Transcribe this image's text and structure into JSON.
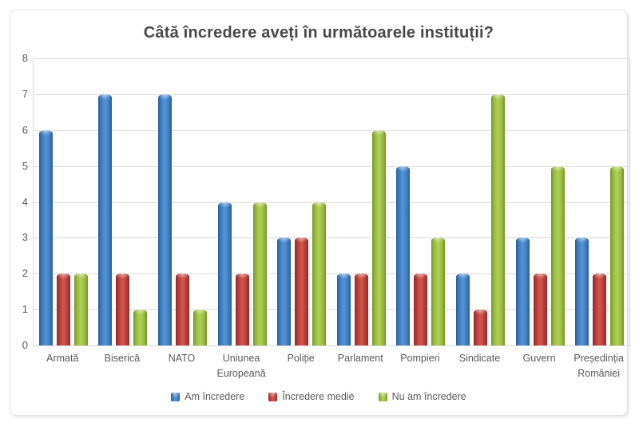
{
  "title": "Câtă încredere aveți în următoarele instituții?",
  "chart_data": {
    "type": "bar",
    "title": "Câtă încredere aveți în următoarele instituții?",
    "categories": [
      "Armată",
      "Biserică",
      "NATO",
      "Uniunea Europeană",
      "Poliție",
      "Parlament",
      "Pompieri",
      "Sindicate",
      "Guvern",
      "Președinția României"
    ],
    "series": [
      {
        "name": "Am încredere",
        "color": "#3a78bc",
        "values": [
          6,
          7,
          7,
          4,
          3,
          2,
          5,
          2,
          3,
          3
        ]
      },
      {
        "name": "Încredere medie",
        "color": "#b23833",
        "values": [
          2,
          2,
          2,
          2,
          3,
          2,
          2,
          1,
          2,
          2
        ]
      },
      {
        "name": "Nu am încredere",
        "color": "#93b739",
        "values": [
          2,
          1,
          1,
          4,
          4,
          6,
          3,
          7,
          5,
          5
        ]
      }
    ],
    "xlabel": "",
    "ylabel": "",
    "ylim": [
      0,
      8
    ],
    "yticks": [
      0,
      1,
      2,
      3,
      4,
      5,
      6,
      7,
      8
    ],
    "grid": true,
    "legend_position": "bottom",
    "text_color": "#595959",
    "title_color": "#474747",
    "gridline_color": "#d9d9d9"
  }
}
